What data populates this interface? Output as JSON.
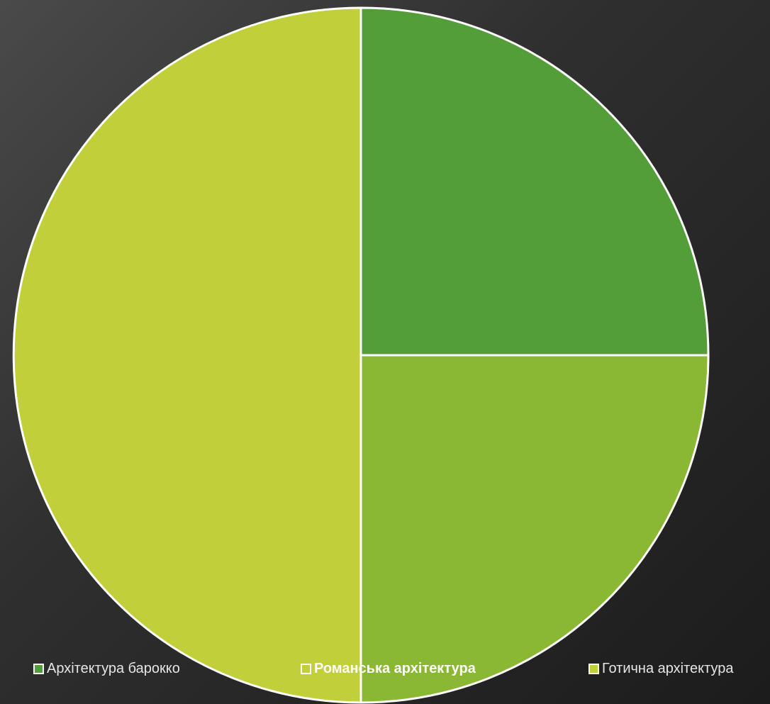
{
  "chart_data": {
    "type": "pie",
    "categories": [
      "Архітектура барокко",
      "Романська архітектура",
      "Готична архітектура"
    ],
    "values": [
      25,
      25,
      50
    ],
    "colors": [
      "#549e39",
      "#8ab833",
      "#c0cf3a"
    ],
    "legend_position": "bottom",
    "start_angle": "top, clockwise",
    "slice_border_color": "#ffffff"
  },
  "legend": {
    "items": [
      {
        "label": "Архітектура барокко",
        "color": "#549e39"
      },
      {
        "label": "Романська архітектура",
        "color": "#8ab833"
      },
      {
        "label": "Готична архітектура",
        "color": "#c0cf3a"
      }
    ]
  },
  "theme": {
    "background_dark": "#1c1c1c",
    "background_light": "#4a4a4a",
    "legend_text": "#e6e6e6"
  }
}
